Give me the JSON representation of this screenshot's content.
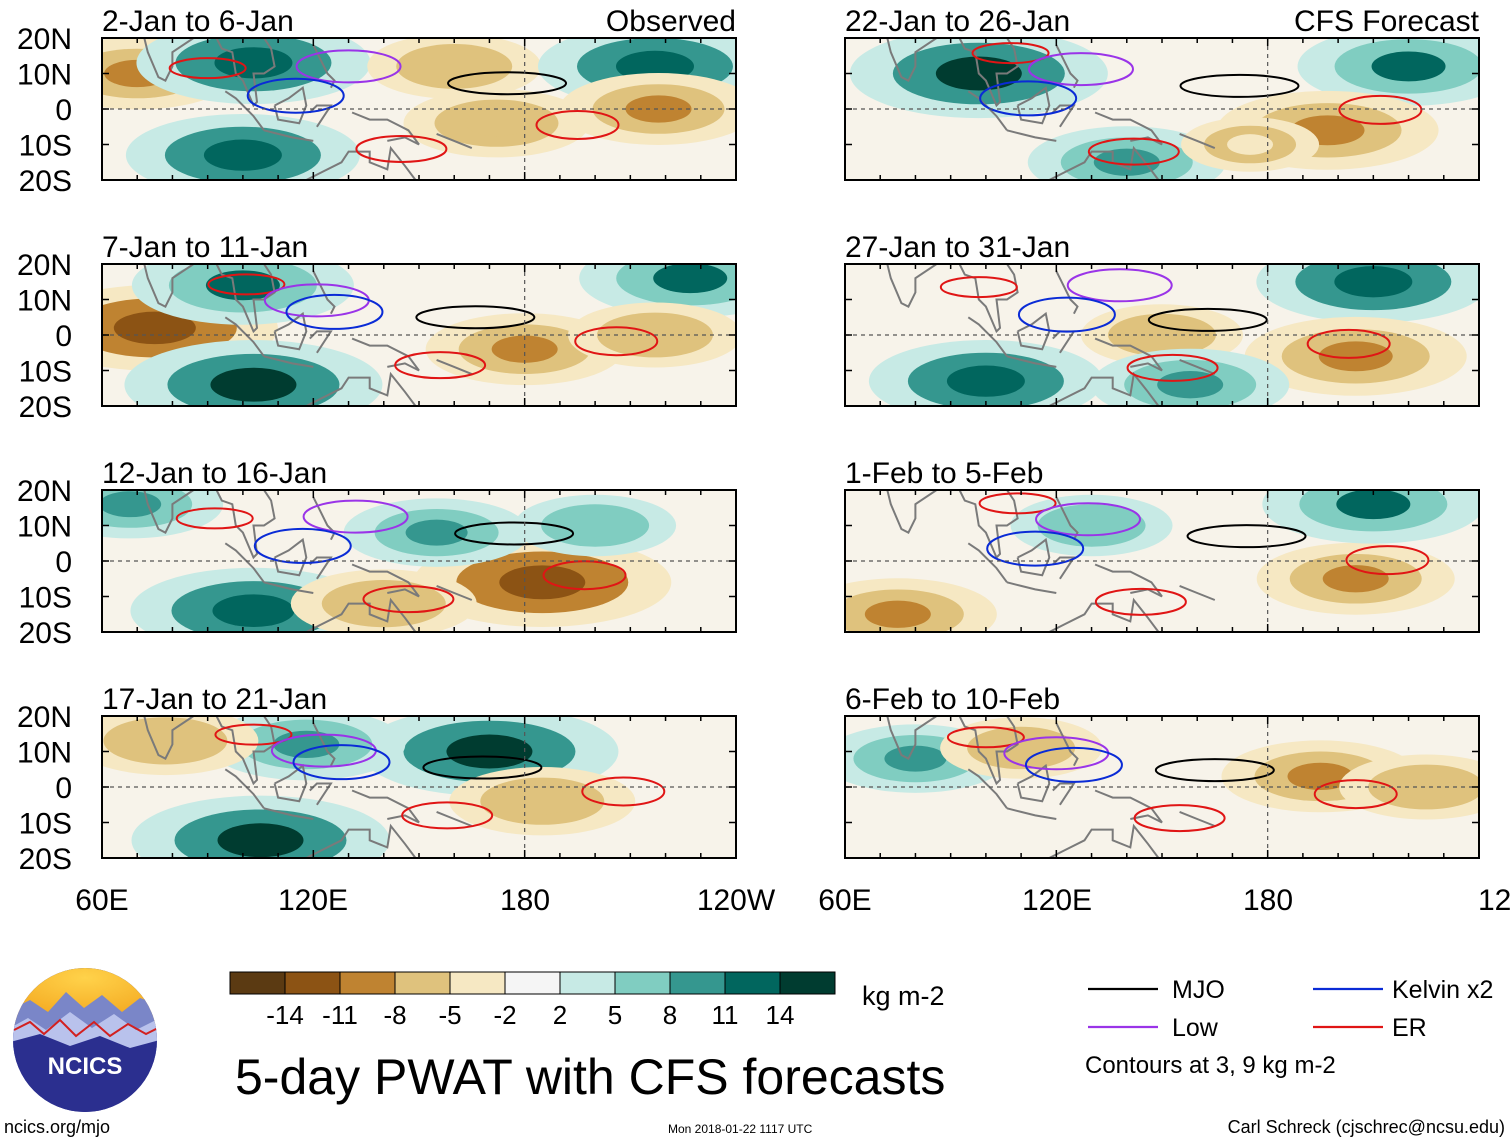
{
  "title": "5-day PWAT with CFS forecasts",
  "panel_columns": [
    {
      "tag": "Observed",
      "panels": [
        {
          "period": "2-Jan to 6-Jan"
        },
        {
          "period": "7-Jan to 11-Jan"
        },
        {
          "period": "12-Jan to 16-Jan"
        },
        {
          "period": "17-Jan to 21-Jan"
        }
      ]
    },
    {
      "tag": "CFS Forecast",
      "panels": [
        {
          "period": "22-Jan to 26-Jan"
        },
        {
          "period": "27-Jan to 31-Jan"
        },
        {
          "period": "1-Feb to 5-Feb"
        },
        {
          "period": "6-Feb to 10-Feb"
        }
      ]
    }
  ],
  "axes": {
    "y_ticks": [
      "20N",
      "10N",
      "0",
      "10S",
      "20S"
    ],
    "x_ticks": [
      "60E",
      "120E",
      "180",
      "120W"
    ]
  },
  "colorbar": {
    "unit": "kg m-2",
    "colors": [
      "#5b3a12",
      "#8c5314",
      "#bf8331",
      "#dfc27d",
      "#f6e8c3",
      "#f5f5f5",
      "#c7eae5",
      "#80cdc1",
      "#35978f",
      "#01665e",
      "#003c30"
    ],
    "labels": [
      "-14",
      "-11",
      "-8",
      "-5",
      "-2",
      "2",
      "5",
      "8",
      "11",
      "14"
    ]
  },
  "legend": {
    "items": [
      {
        "label": "MJO",
        "color": "#000000"
      },
      {
        "label": "Kelvin x2",
        "color": "#0a2bd6"
      },
      {
        "label": "Low",
        "color": "#9a34e8"
      },
      {
        "label": "ER",
        "color": "#e01515"
      }
    ],
    "note": "Contours at 3, 9 kg m-2"
  },
  "logo": {
    "text": "NCICS"
  },
  "footer": {
    "url": "ncics.org/mjo",
    "timestamp": "Mon 2018-01-22 1117 UTC",
    "credit": "Carl Schreck (cjschrec@ncsu.edu)"
  },
  "chart_data": {
    "type": "heatmap",
    "variable": "5-day precipitable water (PWAT) anomaly",
    "lon_range": [
      60,
      240
    ],
    "lat_range": [
      -20,
      20
    ],
    "panels": [
      {
        "period": "2-Jan to 6-Jan",
        "source": "Observed",
        "features": [
          {
            "lon": 70,
            "lat": 10,
            "value": -9
          },
          {
            "lon": 103,
            "lat": 13,
            "value": 12
          },
          {
            "lon": 100,
            "lat": -13,
            "value": 12
          },
          {
            "lon": 160,
            "lat": 12,
            "value": -7
          },
          {
            "lon": 172,
            "lat": -4,
            "value": -8
          },
          {
            "lon": 217,
            "lat": 12,
            "value": 12
          },
          {
            "lon": 218,
            "lat": 0,
            "value": -9
          }
        ]
      },
      {
        "period": "7-Jan to 11-Jan",
        "source": "Observed",
        "features": [
          {
            "lon": 75,
            "lat": 2,
            "value": -13
          },
          {
            "lon": 103,
            "lat": -14,
            "value": 14
          },
          {
            "lon": 100,
            "lat": 14,
            "value": 11
          },
          {
            "lon": 180,
            "lat": -4,
            "value": -9
          },
          {
            "lon": 227,
            "lat": 16,
            "value": 11
          },
          {
            "lon": 217,
            "lat": 0,
            "value": -7
          }
        ]
      },
      {
        "period": "12-Jan to 16-Jan",
        "source": "Observed",
        "features": [
          {
            "lon": 185,
            "lat": -6,
            "value": -14
          },
          {
            "lon": 103,
            "lat": -14,
            "value": 13
          },
          {
            "lon": 155,
            "lat": 8,
            "value": 8
          },
          {
            "lon": 200,
            "lat": 10,
            "value": 6
          },
          {
            "lon": 68,
            "lat": 16,
            "value": 8
          },
          {
            "lon": 140,
            "lat": -12,
            "value": -8
          }
        ]
      },
      {
        "period": "17-Jan to 21-Jan",
        "source": "Observed",
        "features": [
          {
            "lon": 170,
            "lat": 10,
            "value": 14
          },
          {
            "lon": 105,
            "lat": -15,
            "value": 14
          },
          {
            "lon": 118,
            "lat": 12,
            "value": 9
          },
          {
            "lon": 185,
            "lat": -4,
            "value": -8
          },
          {
            "lon": 78,
            "lat": 13,
            "value": -8
          }
        ]
      },
      {
        "period": "22-Jan to 26-Jan",
        "source": "CFS Forecast",
        "features": [
          {
            "lon": 98,
            "lat": 10,
            "value": 14
          },
          {
            "lon": 220,
            "lat": 12,
            "value": 11
          },
          {
            "lon": 197,
            "lat": -6,
            "value": -11
          },
          {
            "lon": 140,
            "lat": -15,
            "value": 9
          },
          {
            "lon": 175,
            "lat": -10,
            "value": -4
          }
        ]
      },
      {
        "period": "27-Jan to 31-Jan",
        "source": "CFS Forecast",
        "features": [
          {
            "lon": 210,
            "lat": 15,
            "value": 12
          },
          {
            "lon": 100,
            "lat": -13,
            "value": 12
          },
          {
            "lon": 205,
            "lat": -6,
            "value": -11
          },
          {
            "lon": 150,
            "lat": 0,
            "value": -6
          },
          {
            "lon": 158,
            "lat": -14,
            "value": 9
          }
        ]
      },
      {
        "period": "1-Feb to 5-Feb",
        "source": "CFS Forecast",
        "features": [
          {
            "lon": 205,
            "lat": -5,
            "value": -9
          },
          {
            "lon": 75,
            "lat": -15,
            "value": -9
          },
          {
            "lon": 210,
            "lat": 16,
            "value": 11
          },
          {
            "lon": 130,
            "lat": 10,
            "value": 6
          }
        ]
      },
      {
        "period": "6-Feb to 10-Feb",
        "source": "CFS Forecast",
        "features": [
          {
            "lon": 195,
            "lat": 3,
            "value": -9
          },
          {
            "lon": 80,
            "lat": 8,
            "value": 8
          },
          {
            "lon": 110,
            "lat": 11,
            "value": -6
          },
          {
            "lon": 225,
            "lat": 0,
            "value": -7
          }
        ]
      }
    ],
    "contours": [
      {
        "name": "MJO",
        "levels_kg_m2": [
          3,
          9
        ]
      },
      {
        "name": "Kelvin x2",
        "levels_kg_m2": [
          3,
          9
        ]
      },
      {
        "name": "Low",
        "levels_kg_m2": [
          3,
          9
        ]
      },
      {
        "name": "ER",
        "levels_kg_m2": [
          3,
          9
        ]
      }
    ]
  }
}
